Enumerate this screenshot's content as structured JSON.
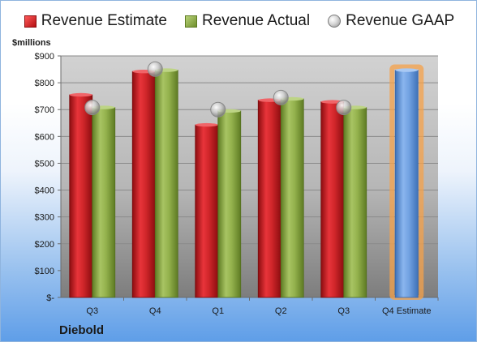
{
  "chart_data": {
    "type": "bar",
    "categories": [
      "Q3",
      "Q4",
      "Q1",
      "Q2",
      "Q3",
      "Q4 Estimate"
    ],
    "series": [
      {
        "name": "Revenue Estimate",
        "values": [
          755,
          842,
          643,
          735,
          729,
          null
        ],
        "color": "#c0181c"
      },
      {
        "name": "Revenue Actual",
        "values": [
          708,
          847,
          695,
          740,
          708,
          null
        ],
        "color": "#8aa83f"
      },
      {
        "name": "Revenue GAAP",
        "values": [
          708,
          851,
          700,
          745,
          708,
          null
        ],
        "color": "#b8b8b8"
      }
    ],
    "forecast": {
      "category": "Q4 Estimate",
      "value": 847,
      "color": "#6a9de0",
      "highlight": "#f6a24a"
    },
    "ylabel": "$millions",
    "ylim": [
      0,
      900
    ],
    "yticks": [
      0,
      100,
      200,
      300,
      400,
      500,
      600,
      700,
      800,
      900
    ],
    "ytick_labels": [
      "$-",
      "$100",
      "$200",
      "$300",
      "$400",
      "$500",
      "$600",
      "$700",
      "$800",
      "$900"
    ],
    "grid": true,
    "legend_position": "top",
    "company": "Diebold"
  }
}
